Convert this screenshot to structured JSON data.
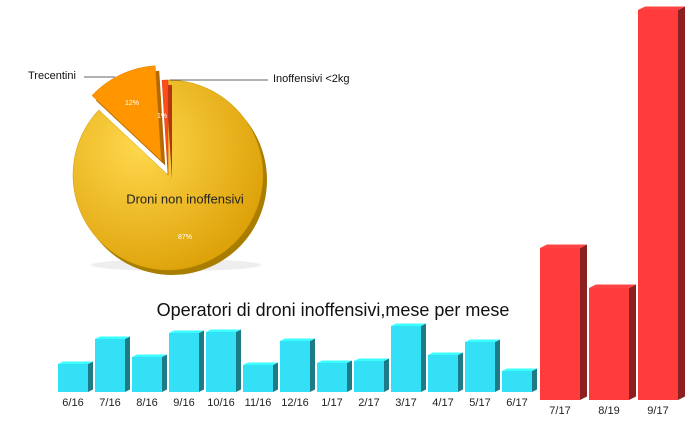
{
  "chart_data": [
    {
      "type": "pie",
      "categories": [
        "Droni non inoffensivi",
        "Trecentini",
        "Inoffensivi <2kg"
      ],
      "values": [
        87,
        12,
        1
      ],
      "value_labels": [
        "87%",
        "12%",
        "1%"
      ],
      "colors": [
        "#f2b400",
        "#ff9600",
        "#ff4d1a"
      ]
    },
    {
      "type": "bar",
      "title": "Operatori di droni inoffensivi,mese per mese",
      "categories": [
        "6/16",
        "7/16",
        "8/16",
        "9/16",
        "10/16",
        "11/16",
        "12/16",
        "1/17",
        "2/17",
        "3/17",
        "4/17",
        "5/17",
        "6/17",
        "7/17",
        "8/19",
        "9/17"
      ],
      "values": [
        28,
        53,
        35,
        59,
        60,
        27,
        51,
        29,
        31,
        66,
        37,
        50,
        21,
        152,
        112,
        390
      ],
      "colors": [
        "#33e0f5",
        "#33e0f5",
        "#33e0f5",
        "#33e0f5",
        "#33e0f5",
        "#33e0f5",
        "#33e0f5",
        "#33e0f5",
        "#33e0f5",
        "#33e0f5",
        "#33e0f5",
        "#33e0f5",
        "#33e0f5",
        "#ff3b3b",
        "#ff3b3b",
        "#ff3b3b"
      ]
    }
  ]
}
